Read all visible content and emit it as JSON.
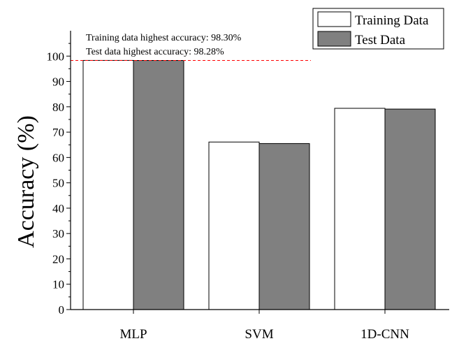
{
  "chart_data": {
    "type": "bar",
    "title": "",
    "xlabel": "",
    "ylabel": "Accuracy (%)",
    "categories": [
      "MLP",
      "SVM",
      "1D-CNN"
    ],
    "series": [
      {
        "name": "Training Data",
        "values": [
          98.3,
          66.1,
          79.4
        ]
      },
      {
        "name": "Test Data",
        "values": [
          98.28,
          65.5,
          79.1
        ]
      }
    ],
    "ylim": [
      0,
      110
    ],
    "yticks": [
      0,
      10,
      20,
      30,
      40,
      50,
      60,
      70,
      80,
      90,
      100
    ],
    "legend": {
      "placement": "top-right",
      "entries": [
        "Training Data",
        "Test Data"
      ]
    },
    "annotations": [
      "Training data highest accuracy: 98.30%",
      "Test data highest accuracy: 98.28%"
    ],
    "reference_line_value": 98.3,
    "grid": false
  },
  "colors": {
    "training_fill": "#ffffff",
    "test_fill": "#808080",
    "reference_line": "#ff0000",
    "axis": "#000000"
  }
}
